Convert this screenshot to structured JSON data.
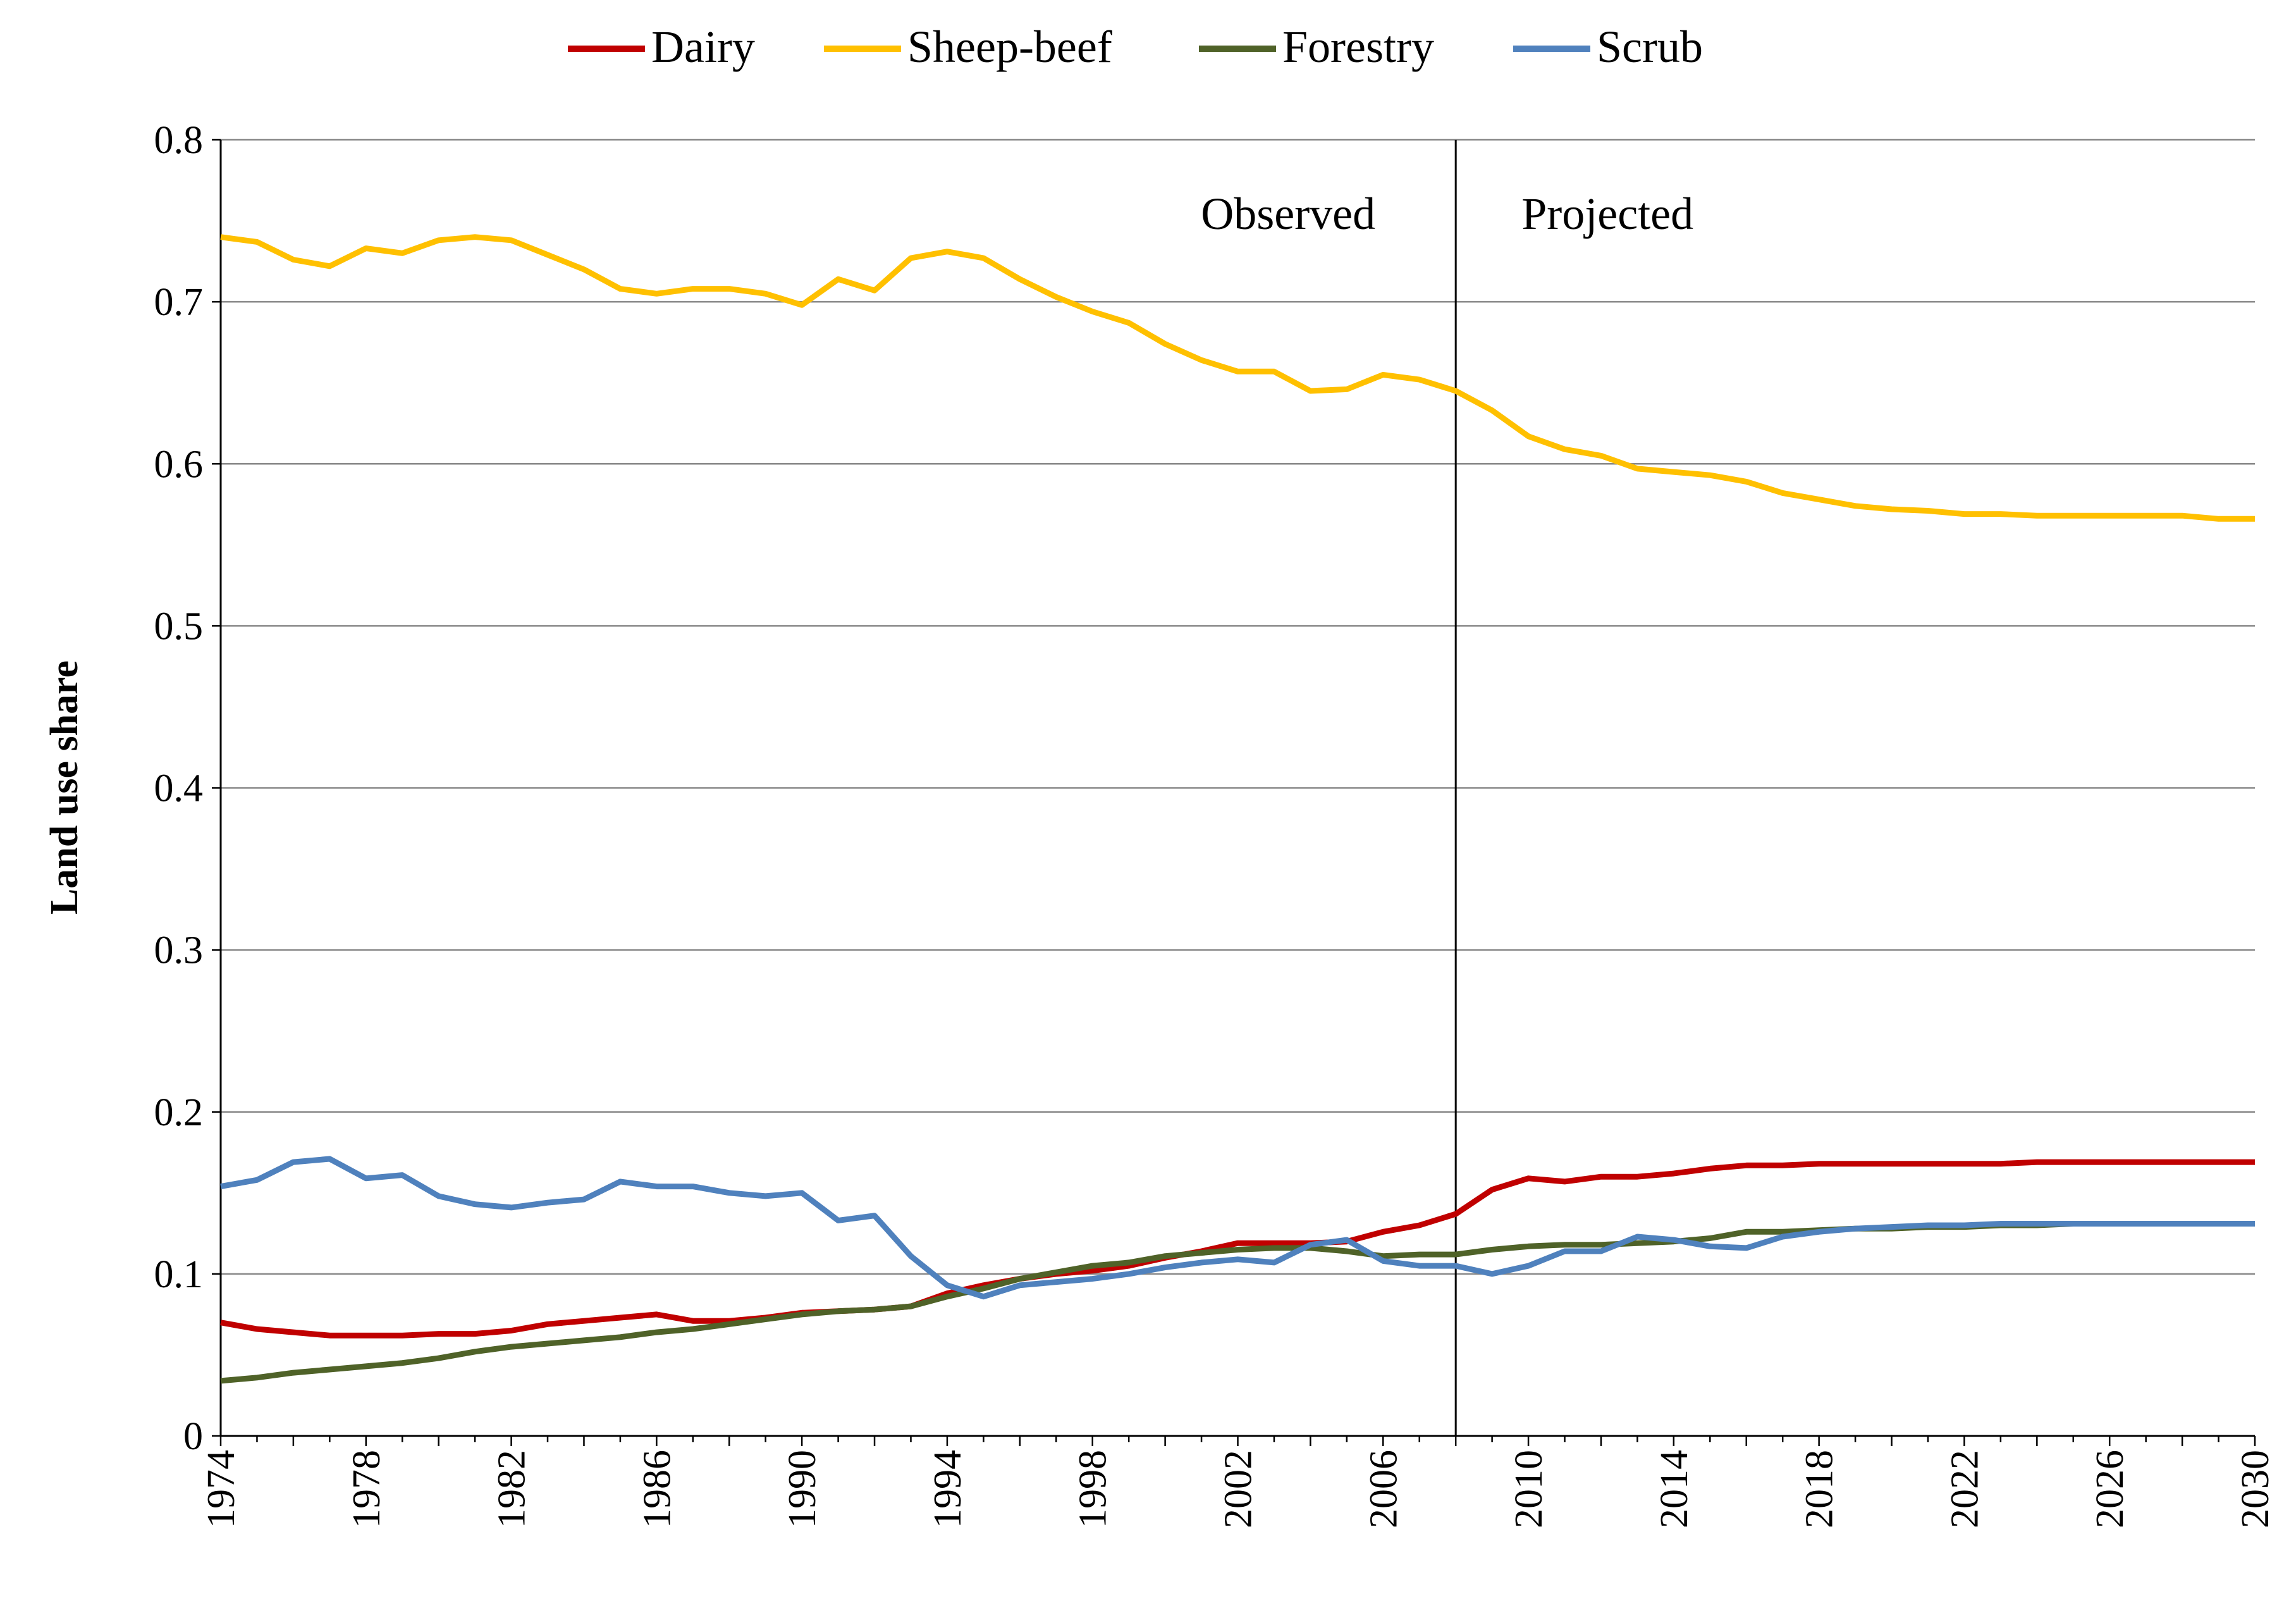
{
  "chart_data": {
    "type": "line",
    "title": "",
    "xlabel": "",
    "ylabel": "Land use share",
    "xlim": [
      1974,
      2030
    ],
    "ylim": [
      0,
      0.8
    ],
    "grid": "horizontal",
    "legend_placement": "top-center",
    "y_ticks": [
      "0",
      "0.1",
      "0.2",
      "0.3",
      "0.4",
      "0.5",
      "0.6",
      "0.7",
      "0.8"
    ],
    "x_ticks": [
      "1974",
      "1978",
      "1982",
      "1986",
      "1990",
      "1994",
      "1998",
      "2002",
      "2006",
      "2010",
      "2014",
      "2018",
      "2022",
      "2026",
      "2030"
    ],
    "annotations": [
      {
        "text": "Observed",
        "side": "left of divider"
      },
      {
        "text": "Projected",
        "side": "right of divider"
      }
    ],
    "divider_year": 2008,
    "x": [
      1974,
      1975,
      1976,
      1977,
      1978,
      1979,
      1980,
      1981,
      1982,
      1983,
      1984,
      1985,
      1986,
      1987,
      1988,
      1989,
      1990,
      1991,
      1992,
      1993,
      1994,
      1995,
      1996,
      1997,
      1998,
      1999,
      2000,
      2001,
      2002,
      2003,
      2004,
      2005,
      2006,
      2007,
      2008,
      2009,
      2010,
      2011,
      2012,
      2013,
      2014,
      2015,
      2016,
      2017,
      2018,
      2019,
      2020,
      2021,
      2022,
      2023,
      2024,
      2025,
      2026,
      2027,
      2028,
      2029,
      2030
    ],
    "series": [
      {
        "name": "Dairy",
        "color": "#C00000",
        "values": [
          0.07,
          0.066,
          0.064,
          0.062,
          0.062,
          0.062,
          0.063,
          0.063,
          0.065,
          0.069,
          0.071,
          0.073,
          0.075,
          0.071,
          0.071,
          0.073,
          0.076,
          0.077,
          0.078,
          0.08,
          0.088,
          0.093,
          0.097,
          0.1,
          0.102,
          0.105,
          0.11,
          0.114,
          0.119,
          0.119,
          0.119,
          0.12,
          0.126,
          0.13,
          0.137,
          0.152,
          0.159,
          0.157,
          0.16,
          0.16,
          0.162,
          0.165,
          0.167,
          0.167,
          0.168,
          0.168,
          0.168,
          0.168,
          0.168,
          0.168,
          0.169,
          0.169,
          0.169,
          0.169,
          0.169,
          0.169,
          0.169
        ]
      },
      {
        "name": "Sheep-beef",
        "color": "#FFC000",
        "values": [
          0.74,
          0.737,
          0.726,
          0.722,
          0.733,
          0.73,
          0.738,
          0.74,
          0.738,
          0.729,
          0.72,
          0.708,
          0.705,
          0.708,
          0.708,
          0.705,
          0.698,
          0.714,
          0.707,
          0.727,
          0.731,
          0.727,
          0.714,
          0.703,
          0.694,
          0.687,
          0.674,
          0.664,
          0.657,
          0.657,
          0.645,
          0.646,
          0.655,
          0.652,
          0.645,
          0.633,
          0.617,
          0.609,
          0.605,
          0.597,
          0.595,
          0.593,
          0.589,
          0.582,
          0.578,
          0.574,
          0.572,
          0.571,
          0.569,
          0.569,
          0.568,
          0.568,
          0.568,
          0.568,
          0.568,
          0.566,
          0.566
        ]
      },
      {
        "name": "Forestry",
        "color": "#4F6228",
        "values": [
          0.034,
          0.036,
          0.039,
          0.041,
          0.043,
          0.045,
          0.048,
          0.052,
          0.055,
          0.057,
          0.059,
          0.061,
          0.064,
          0.066,
          0.069,
          0.072,
          0.075,
          0.077,
          0.078,
          0.08,
          0.086,
          0.091,
          0.097,
          0.101,
          0.105,
          0.107,
          0.111,
          0.113,
          0.115,
          0.116,
          0.116,
          0.114,
          0.111,
          0.112,
          0.112,
          0.115,
          0.117,
          0.118,
          0.118,
          0.119,
          0.12,
          0.122,
          0.126,
          0.126,
          0.127,
          0.128,
          0.128,
          0.129,
          0.129,
          0.13,
          0.13,
          0.131,
          0.131,
          0.131,
          0.131,
          0.131,
          0.131
        ]
      },
      {
        "name": "Scrub",
        "color": "#4F81BD",
        "values": [
          0.154,
          0.158,
          0.169,
          0.171,
          0.159,
          0.161,
          0.148,
          0.143,
          0.141,
          0.144,
          0.146,
          0.157,
          0.154,
          0.154,
          0.15,
          0.148,
          0.15,
          0.133,
          0.136,
          0.111,
          0.093,
          0.086,
          0.093,
          0.095,
          0.097,
          0.1,
          0.104,
          0.107,
          0.109,
          0.107,
          0.118,
          0.121,
          0.108,
          0.105,
          0.105,
          0.1,
          0.105,
          0.114,
          0.114,
          0.123,
          0.121,
          0.117,
          0.116,
          0.123,
          0.126,
          0.128,
          0.129,
          0.13,
          0.13,
          0.131,
          0.131,
          0.131,
          0.131,
          0.131,
          0.131,
          0.131,
          0.131
        ]
      }
    ]
  }
}
